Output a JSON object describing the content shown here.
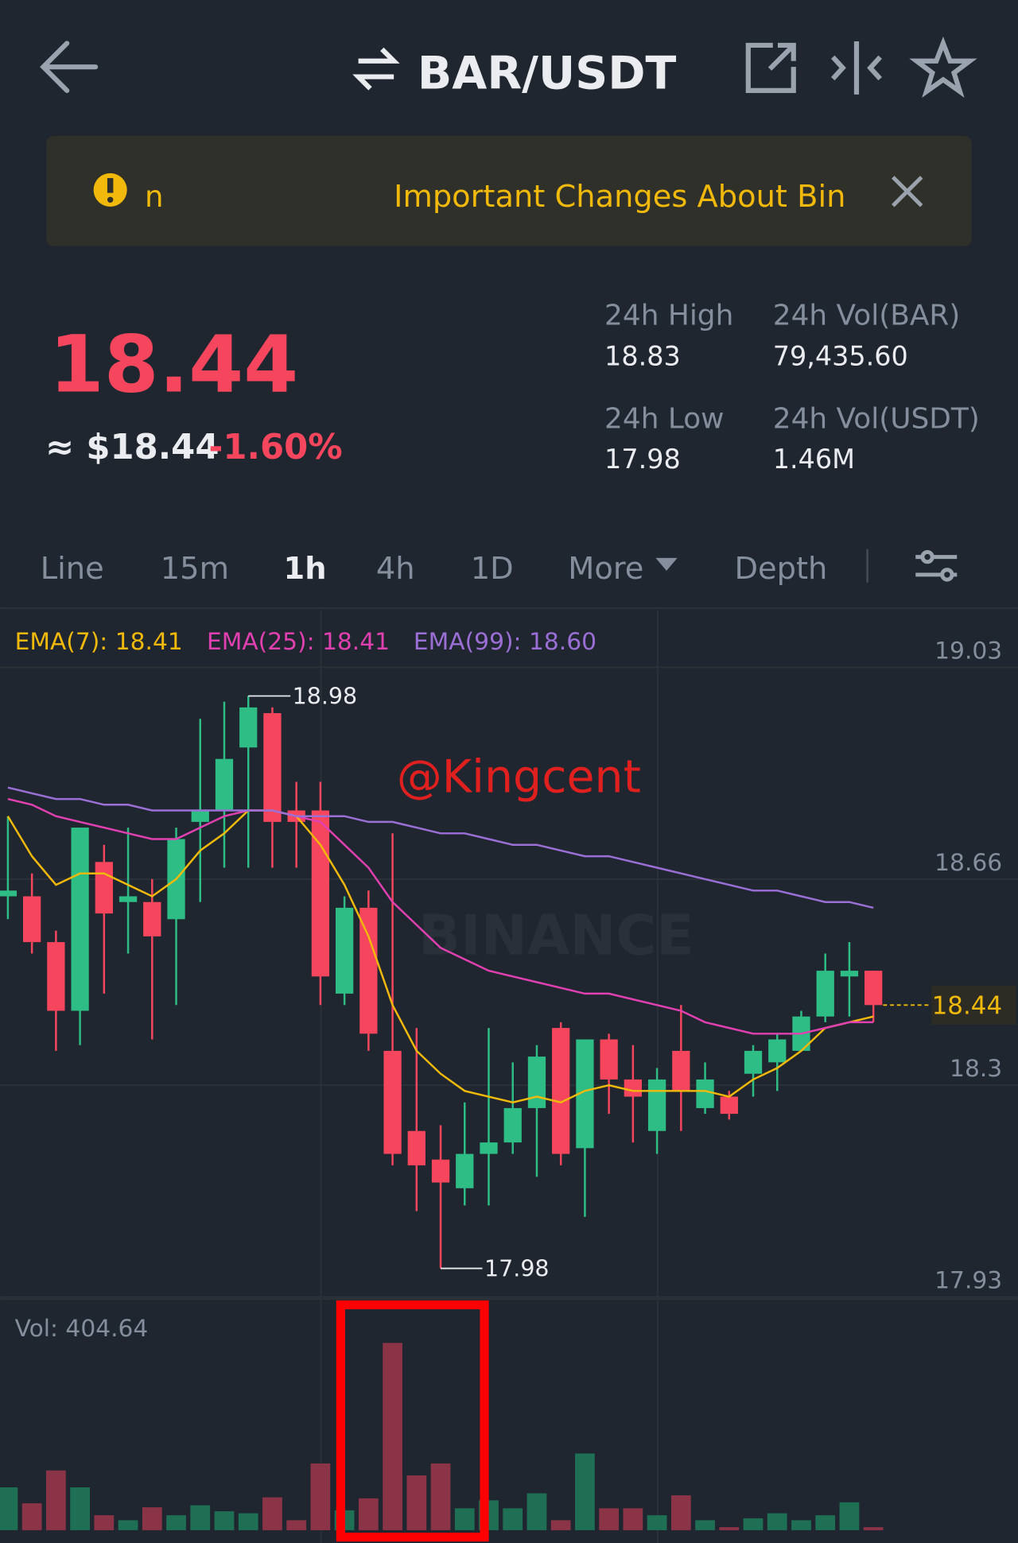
{
  "header": {
    "title": "BAR/USDT"
  },
  "banner": {
    "prefix": "n",
    "text": "Important Changes About Bin"
  },
  "price": {
    "last": "18.44",
    "approx": "≈ $18.44",
    "change": "-1.60%"
  },
  "stats": [
    {
      "label": "24h High",
      "value": "18.83"
    },
    {
      "label": "24h Vol(BAR)",
      "value": "79,435.60"
    },
    {
      "label": "24h Low",
      "value": "17.98"
    },
    {
      "label": "24h Vol(USDT)",
      "value": "1.46M"
    }
  ],
  "tabs": [
    "Line",
    "15m",
    "1h",
    "4h",
    "1D",
    "More",
    "Depth"
  ],
  "active_tab": 2,
  "watermark": "@Kingcent",
  "logo": "BINANCE",
  "chart_data": {
    "type": "candlestick",
    "open": [
      18.63,
      18.63,
      18.55,
      18.43,
      18.69,
      18.62,
      18.62,
      18.59,
      18.76,
      18.78,
      18.89,
      18.95,
      18.78,
      18.78,
      18.46,
      18.61,
      18.36,
      18.22,
      18.17,
      18.12,
      18.18,
      18.2,
      18.26,
      18.4,
      18.19,
      18.38,
      18.31,
      18.22,
      18.36,
      18.26,
      18.28,
      18.32,
      18.34,
      18.36,
      18.42,
      18.49,
      18.5
    ],
    "high": [
      18.77,
      18.67,
      18.57,
      18.75,
      18.72,
      18.75,
      18.66,
      18.75,
      18.94,
      18.97,
      18.98,
      18.96,
      18.83,
      18.83,
      18.63,
      18.64,
      18.74,
      18.4,
      18.23,
      18.27,
      18.4,
      18.34,
      18.37,
      18.41,
      18.38,
      18.39,
      18.37,
      18.33,
      18.44,
      18.34,
      18.29,
      18.37,
      18.39,
      18.43,
      18.53,
      18.55,
      18.5
    ],
    "low": [
      18.59,
      18.53,
      18.36,
      18.37,
      18.46,
      18.53,
      18.38,
      18.44,
      18.62,
      18.68,
      18.68,
      18.68,
      18.68,
      18.44,
      18.44,
      18.36,
      18.16,
      18.08,
      17.98,
      18.09,
      18.09,
      18.18,
      18.14,
      18.16,
      18.07,
      18.25,
      18.2,
      18.18,
      18.22,
      18.25,
      18.24,
      18.28,
      18.29,
      18.36,
      18.41,
      18.42,
      18.41
    ],
    "close": [
      18.64,
      18.55,
      18.43,
      18.75,
      18.6,
      18.63,
      18.56,
      18.73,
      18.78,
      18.87,
      18.96,
      18.76,
      18.76,
      18.49,
      18.61,
      18.39,
      18.18,
      18.16,
      18.13,
      18.18,
      18.2,
      18.26,
      18.35,
      18.18,
      18.38,
      18.31,
      18.28,
      18.31,
      18.29,
      18.31,
      18.25,
      18.36,
      18.38,
      18.42,
      18.5,
      18.5,
      18.44
    ],
    "up_color": "#2ebd85",
    "down_color": "#f6465d",
    "series": [
      {
        "name": "EMA(7): 18.41",
        "color": "#f0b90b",
        "values": [
          18.77,
          18.7,
          18.65,
          18.67,
          18.67,
          18.65,
          18.63,
          18.66,
          18.71,
          18.74,
          18.78,
          18.78,
          18.77,
          18.72,
          18.65,
          18.56,
          18.44,
          18.36,
          18.32,
          18.29,
          18.28,
          18.27,
          18.28,
          18.27,
          18.29,
          18.3,
          18.29,
          18.29,
          18.29,
          18.29,
          18.28,
          18.31,
          18.33,
          18.36,
          18.4,
          18.41,
          18.42
        ]
      },
      {
        "name": "EMA(25): 18.41",
        "color": "#e040b0",
        "values": [
          18.8,
          18.79,
          18.77,
          18.76,
          18.75,
          18.74,
          18.73,
          18.73,
          18.75,
          18.77,
          18.78,
          18.78,
          18.77,
          18.76,
          18.72,
          18.68,
          18.62,
          18.58,
          18.54,
          18.52,
          18.5,
          18.49,
          18.48,
          18.47,
          18.46,
          18.46,
          18.45,
          18.44,
          18.43,
          18.41,
          18.4,
          18.39,
          18.39,
          18.39,
          18.4,
          18.41,
          18.41
        ]
      },
      {
        "name": "EMA(99): 18.60",
        "color": "#9b6fd6",
        "values": [
          18.82,
          18.81,
          18.8,
          18.8,
          18.79,
          18.79,
          18.78,
          18.78,
          18.78,
          18.78,
          18.78,
          18.78,
          18.77,
          18.77,
          18.77,
          18.76,
          18.76,
          18.75,
          18.74,
          18.74,
          18.73,
          18.72,
          18.72,
          18.71,
          18.7,
          18.7,
          18.69,
          18.68,
          18.67,
          18.66,
          18.65,
          18.64,
          18.64,
          18.63,
          18.62,
          18.62,
          18.61
        ]
      }
    ],
    "ylim": [
      17.93,
      19.13
    ],
    "yticks": [
      17.93,
      18.3,
      18.66,
      19.03
    ],
    "high_label": 18.98,
    "low_label": 17.98,
    "last_price": 18.44,
    "volume": {
      "label": "Vol: 404.64",
      "ylim": [
        0,
        30000
      ],
      "up_color": "#1f6f55",
      "down_color": "#8c3447",
      "values": [
        5805,
        3645,
        8100,
        5805,
        2025,
        1350,
        3105,
        2025,
        3375,
        2565,
        2295,
        4455,
        1350,
        9045,
        2700,
        4320,
        25380,
        7425,
        9045,
        2970,
        4050,
        2970,
        4995,
        1350,
        10395,
        2970,
        2970,
        2025,
        4725,
        1350,
        405,
        1620,
        2295,
        1350,
        2025,
        3780,
        405
      ]
    }
  }
}
